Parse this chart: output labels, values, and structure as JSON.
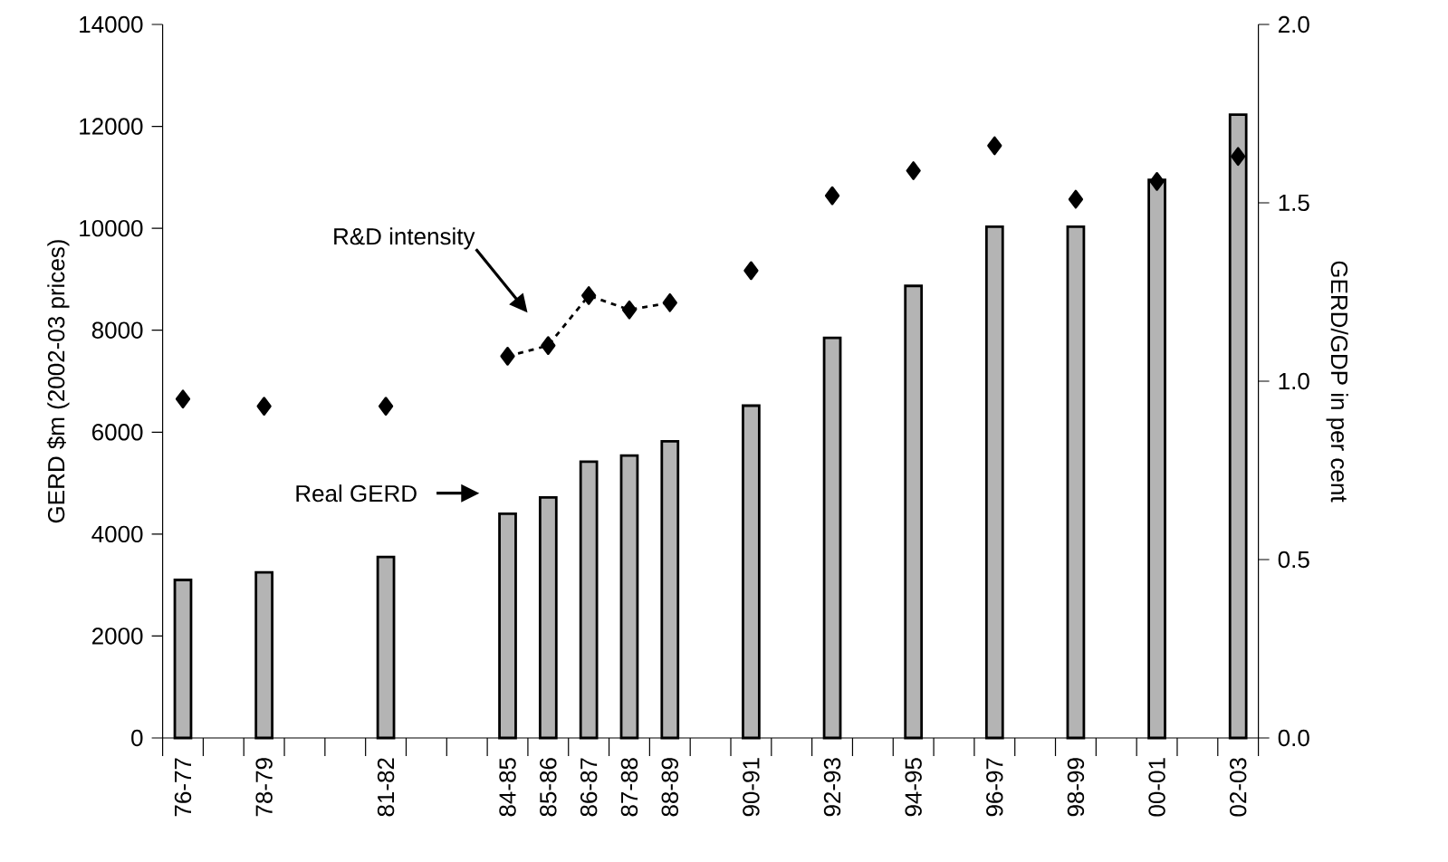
{
  "chart_data": {
    "type": "bar",
    "categories": [
      "76-77",
      null,
      "78-79",
      null,
      null,
      "81-82",
      null,
      null,
      "84-85",
      "85-86",
      "86-87",
      "87-88",
      "88-89",
      null,
      "90-91",
      null,
      "92-93",
      null,
      "94-95",
      null,
      "96-97",
      null,
      "98-99",
      null,
      "00-01",
      null,
      "02-03"
    ],
    "series": [
      {
        "color": "#b4b4b4",
        "values": [
          3100,
          null,
          3250,
          null,
          null,
          3550,
          null,
          null,
          4400,
          4720,
          5420,
          5540,
          5820,
          null,
          6520,
          null,
          7850,
          null,
          8870,
          null,
          10030,
          null,
          10030,
          null,
          10950,
          null,
          12230
        ]
      },
      {
        "type": "line",
        "axis": "y2",
        "color": "#000000",
        "marker": "diamond",
        "line_style": "dotted",
        "values": [
          0.95,
          null,
          0.93,
          null,
          null,
          0.93,
          null,
          null,
          1.07,
          1.1,
          1.24,
          1.2,
          1.22,
          null,
          1.31,
          null,
          1.52,
          null,
          1.59,
          null,
          1.66,
          null,
          1.51,
          null,
          1.56,
          null,
          1.63
        ]
      }
    ],
    "ylabel": "GERD $m (2002-03 prices)",
    "y2label": "GERD/GDP in per cent",
    "ylim": [
      0,
      14000
    ],
    "yticks": [
      0,
      2000,
      4000,
      6000,
      8000,
      10000,
      12000,
      14000
    ],
    "y2lim": [
      0,
      2.0
    ],
    "y2ticks": [
      {
        "value": 0,
        "label": "0.0"
      },
      {
        "value": 0.5,
        "label": "0.5"
      },
      {
        "value": 1.0,
        "label": "1.0"
      },
      {
        "value": 1.5,
        "label": "1.5"
      },
      {
        "value": 2.0,
        "label": "2.0"
      }
    ],
    "annotations": [
      "R&D intensity",
      "Real GERD"
    ]
  }
}
